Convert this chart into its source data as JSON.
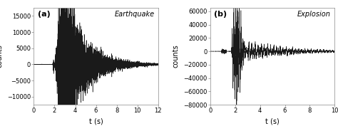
{
  "panel_a": {
    "label": "(a)",
    "title": "Earthquake",
    "xlabel": "t (s)",
    "ylabel": "counts",
    "xlim": [
      0,
      12
    ],
    "ylim": [
      -12500,
      17500
    ],
    "yticks": [
      -10000,
      -5000,
      0,
      5000,
      10000,
      15000
    ],
    "xticks": [
      0,
      2,
      4,
      6,
      8,
      10,
      12
    ],
    "duration": 12.0,
    "fs": 500,
    "amplitude": 13000
  },
  "panel_b": {
    "label": "(b)",
    "title": "Explosion",
    "xlabel": "t (s)",
    "ylabel": "counts",
    "xlim": [
      0,
      10
    ],
    "ylim": [
      -80000,
      65000
    ],
    "yticks": [
      -80000,
      -60000,
      -40000,
      -20000,
      0,
      20000,
      40000,
      60000
    ],
    "xticks": [
      0,
      2,
      4,
      6,
      8,
      10
    ],
    "duration": 10.0,
    "fs": 500,
    "amplitude": 60000
  },
  "line_color": "#1a1a1a",
  "line_width": 0.35,
  "bg_color": "#ffffff",
  "fig_color": "#ffffff",
  "label_fontsize": 7,
  "title_fontsize": 7,
  "tick_fontsize": 6
}
